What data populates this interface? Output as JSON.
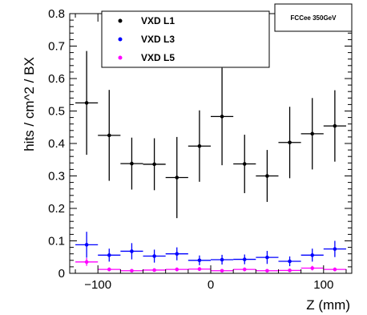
{
  "chart_data": {
    "type": "scatter",
    "xlabel": "Z (mm)",
    "ylabel": "hits / cm^2 / BX",
    "xlim": [
      -125,
      125
    ],
    "ylim": [
      0,
      0.8
    ],
    "x_ticks": [
      -100,
      0,
      100
    ],
    "x_tick_labels": [
      "−100",
      "0",
      "100"
    ],
    "y_ticks": [
      0,
      0.1,
      0.2,
      0.3,
      0.4,
      0.5,
      0.6,
      0.7,
      0.8
    ],
    "y_tick_labels": [
      "0",
      "0.1",
      "0.2",
      "0.3",
      "0.4",
      "0.5",
      "0.6",
      "0.7",
      "0.8"
    ],
    "bin_half_width": 10,
    "grid": false,
    "legend_position": "top-left",
    "tag": "FCCee 350GeV",
    "series": [
      {
        "name": "VXD L1",
        "color": "#000000",
        "x": [
          -110,
          -90,
          -70,
          -50,
          -30,
          -10,
          10,
          30,
          50,
          70,
          90,
          110
        ],
        "y": [
          0.525,
          0.425,
          0.338,
          0.336,
          0.295,
          0.392,
          0.483,
          0.337,
          0.3,
          0.403,
          0.43,
          0.454
        ],
        "yerr": [
          0.16,
          0.14,
          0.08,
          0.08,
          0.125,
          0.11,
          0.15,
          0.09,
          0.08,
          0.11,
          0.11,
          0.11
        ]
      },
      {
        "name": "VXD L3",
        "color": "#0000ff",
        "x": [
          -110,
          -90,
          -70,
          -50,
          -30,
          -10,
          10,
          30,
          50,
          70,
          90,
          110
        ],
        "y": [
          0.088,
          0.056,
          0.068,
          0.053,
          0.06,
          0.04,
          0.042,
          0.043,
          0.049,
          0.037,
          0.056,
          0.075
        ],
        "yerr": [
          0.04,
          0.02,
          0.025,
          0.02,
          0.02,
          0.015,
          0.015,
          0.015,
          0.02,
          0.015,
          0.02,
          0.025
        ]
      },
      {
        "name": "VXD L5",
        "color": "#ff00ff",
        "x": [
          -110,
          -90,
          -70,
          -50,
          -30,
          -10,
          10,
          30,
          50,
          70,
          90,
          110
        ],
        "y": [
          0.035,
          0.012,
          0.008,
          0.01,
          0.012,
          0.013,
          0.008,
          0.012,
          0.008,
          0.009,
          0.016,
          0.012
        ],
        "yerr": [
          0.012,
          0.006,
          0.004,
          0.005,
          0.006,
          0.006,
          0.004,
          0.006,
          0.004,
          0.004,
          0.007,
          0.006
        ]
      }
    ]
  }
}
